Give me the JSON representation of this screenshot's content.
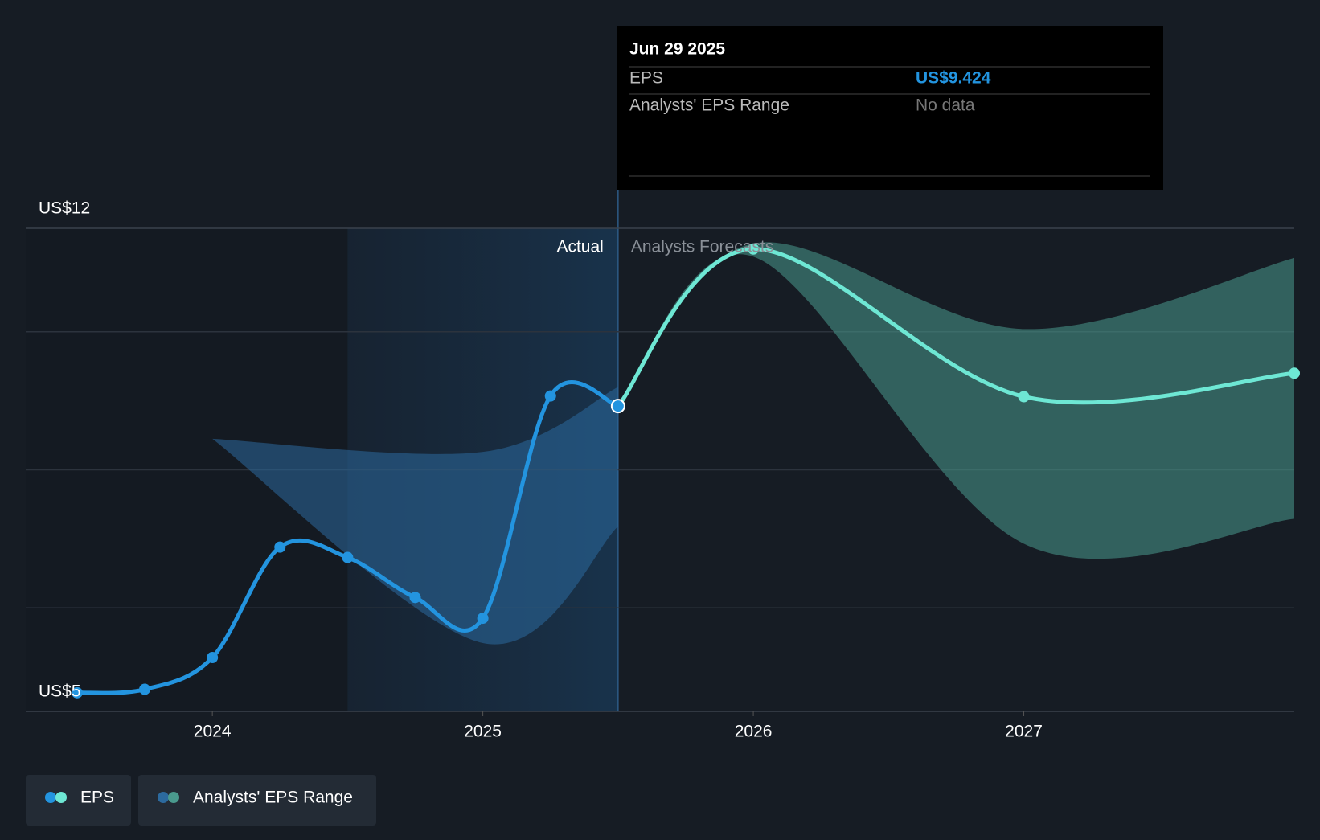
{
  "chart_data": {
    "type": "line",
    "xlim": [
      2023.31,
      2028.0
    ],
    "xticks": [
      2024,
      2025,
      2026,
      2027
    ],
    "ylim": [
      5,
      12
    ],
    "yticks": [
      {
        "value": 5,
        "label": "US$5"
      },
      {
        "value": 12,
        "label": "US$12"
      }
    ],
    "ygrid": [
      6.5,
      8.5,
      10.5
    ],
    "actual_span": [
      2024.5,
      2025.5
    ],
    "actual_label": "Actual",
    "forecast_label": "Analysts Forecasts",
    "series": [
      {
        "name": "EPS",
        "colors": [
          "#2394df",
          "#6ee7d4"
        ],
        "x": [
          2023.5,
          2023.75,
          2024.0,
          2024.25,
          2024.5,
          2024.75,
          2025.0,
          2025.25,
          2025.5,
          2026.0,
          2027.0,
          2028.0
        ],
        "values": [
          5.27,
          5.32,
          5.78,
          7.38,
          7.23,
          6.65,
          6.35,
          9.57,
          9.424,
          11.7,
          9.56,
          9.9
        ]
      },
      {
        "name": "Analysts' EPS Range",
        "colors": [
          "#2c6a9e",
          "#4a9a8e"
        ],
        "x": [
          2024.0,
          2025.0,
          2025.5,
          null,
          2025.5,
          2026.0,
          2027.0,
          2028.0
        ],
        "upper": [
          8.95,
          8.76,
          9.7,
          null,
          9.424,
          11.78,
          10.54,
          11.57
        ],
        "lower": [
          8.95,
          5.99,
          7.68,
          null,
          9.424,
          11.59,
          7.43,
          7.79
        ]
      }
    ],
    "tooltip": {
      "date": "Jun 29 2025",
      "rows": [
        {
          "label": "EPS",
          "value": "US$9.424"
        },
        {
          "label": "Analysts' EPS Range",
          "value": "No data"
        }
      ]
    }
  }
}
